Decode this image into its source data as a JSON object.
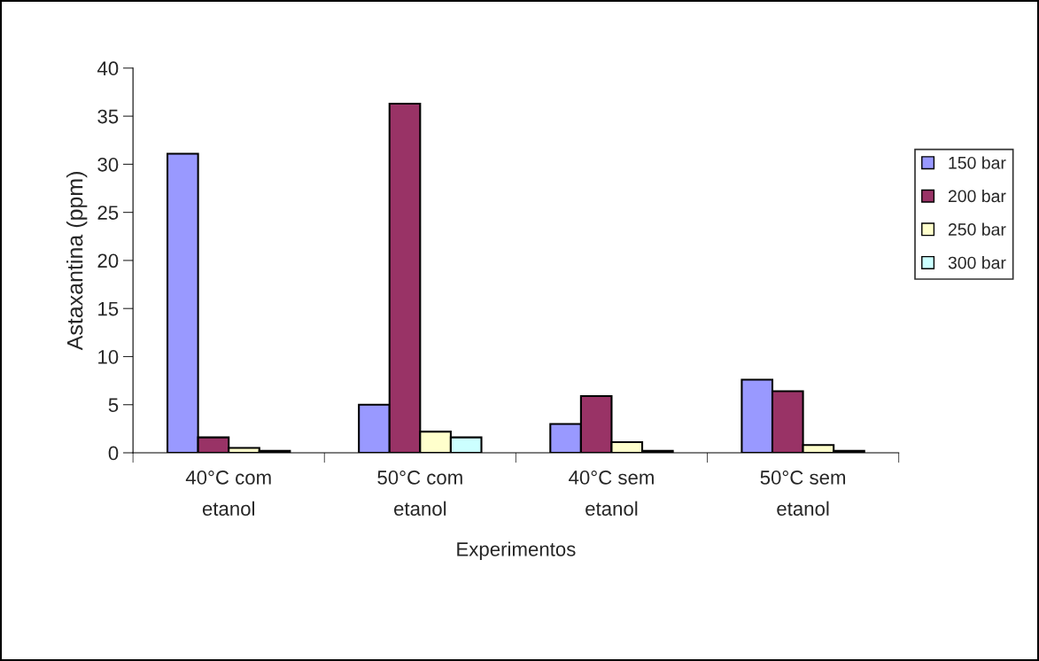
{
  "chart_data": {
    "type": "bar",
    "xlabel": "Experimentos",
    "ylabel": "Astaxantina (ppm)",
    "categories": [
      "40°C com\netanol",
      "50°C com\netanol",
      "40°C sem\netanol",
      "50°C sem\netanol"
    ],
    "series": [
      {
        "name": "150 bar",
        "color": "#9999ff",
        "values": [
          31.1,
          5.0,
          3.0,
          7.6
        ]
      },
      {
        "name": "200 bar",
        "color": "#993366",
        "values": [
          1.6,
          36.3,
          5.9,
          6.4
        ]
      },
      {
        "name": "250 bar",
        "color": "#ffffcc",
        "values": [
          0.5,
          2.2,
          1.1,
          0.8
        ]
      },
      {
        "name": "300 bar",
        "color": "#ccffff",
        "values": [
          0.2,
          1.6,
          0.2,
          0.2
        ]
      }
    ],
    "ylim": [
      0,
      40
    ],
    "yticks": [
      0,
      5,
      10,
      15,
      20,
      25,
      30,
      35,
      40
    ],
    "grid": false,
    "legend": "right"
  }
}
